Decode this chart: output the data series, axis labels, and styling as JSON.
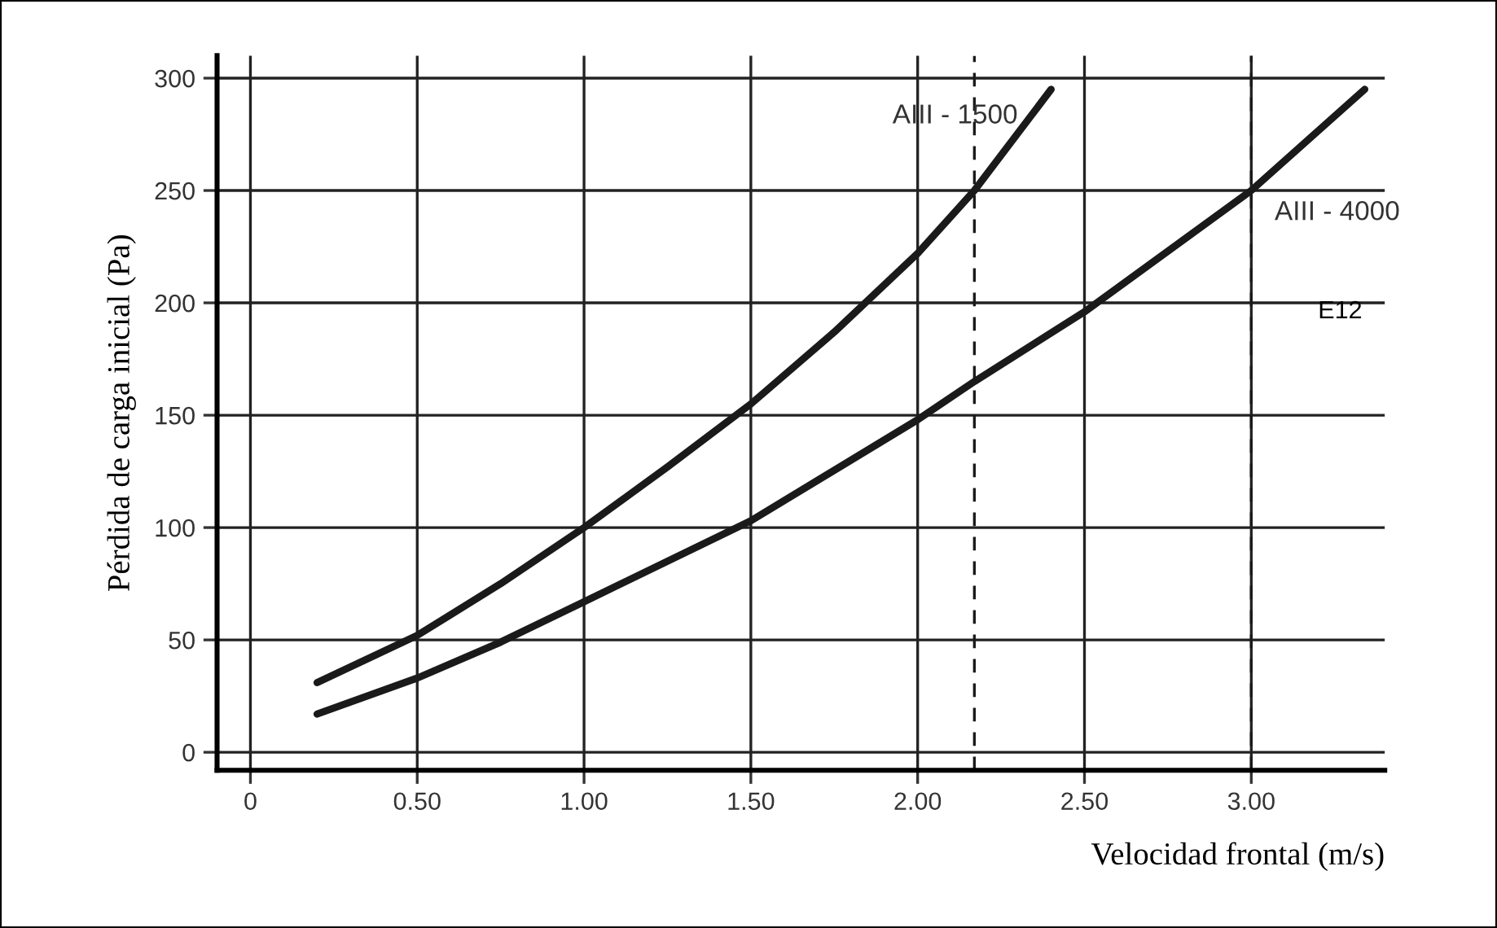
{
  "chart_data": {
    "type": "line",
    "xlabel": "Velocidad frontal (m/s)",
    "ylabel": "Pérdida de carga inicial (Pa)",
    "series": [
      {
        "name": "AIII - 1500",
        "color": "#1a1a1a",
        "x": [
          0.2,
          0.5,
          0.75,
          1.0,
          1.25,
          1.5,
          1.75,
          2.0,
          2.17,
          2.4
        ],
        "values": [
          31,
          52,
          75,
          100,
          127,
          155,
          187,
          222,
          250,
          295
        ]
      },
      {
        "name": "AIII - 4000",
        "color": "#1a1a1a",
        "x": [
          0.2,
          0.5,
          0.75,
          1.0,
          1.5,
          2.0,
          2.17,
          2.5,
          3.0,
          3.34
        ],
        "values": [
          17,
          33,
          49,
          67,
          103,
          148,
          165,
          196,
          250,
          295
        ]
      }
    ],
    "annotations": [
      "E12"
    ],
    "ref_lines": [
      {
        "axis": "x",
        "value": 2.17,
        "label": null,
        "line_style": "dashed",
        "color": "#1a1a1a"
      },
      {
        "axis": "x",
        "value": 3.0,
        "label": null,
        "line_style": "dashed",
        "color": "#1a1a1a"
      }
    ],
    "xlim": [
      -0.1,
      3.4
    ],
    "ylim": [
      -8,
      310
    ],
    "xticks": [
      {
        "value": 0,
        "label": "0"
      },
      {
        "value": 0.5,
        "label": "0.50"
      },
      {
        "value": 1.0,
        "label": "1.00"
      },
      {
        "value": 1.5,
        "label": "1.50"
      },
      {
        "value": 2.0,
        "label": "2.00"
      },
      {
        "value": 2.5,
        "label": "2.50"
      },
      {
        "value": 3.0,
        "label": "3.00"
      }
    ],
    "yticks": [
      0,
      50,
      100,
      150,
      200,
      250,
      300
    ],
    "grid": true,
    "legend": false,
    "marker": "none",
    "line_style": "solid"
  }
}
